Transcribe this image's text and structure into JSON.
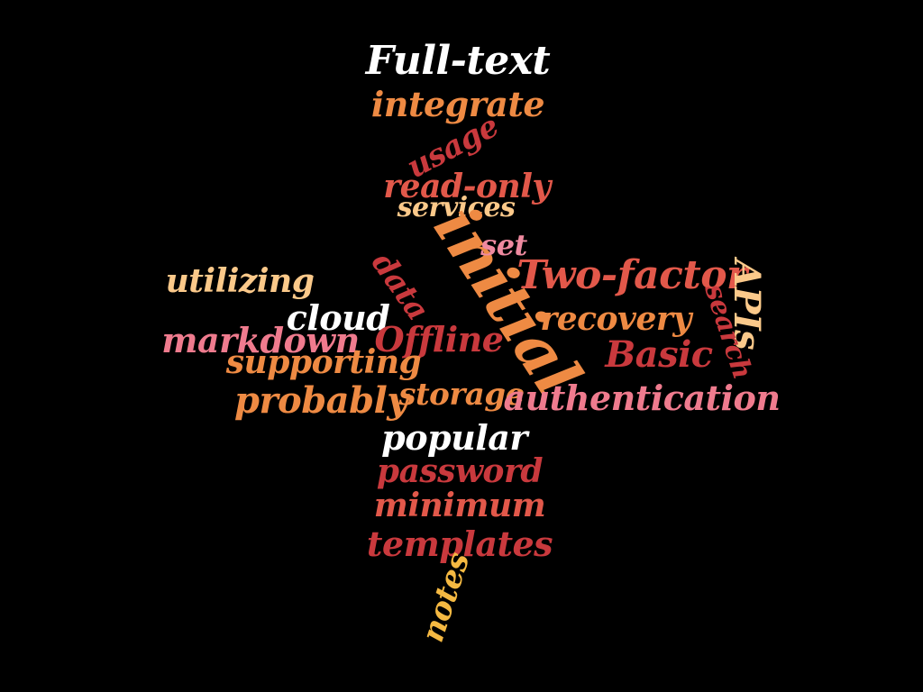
{
  "words": [
    {
      "text": "Full-text",
      "color": "#ffffff"
    },
    {
      "text": "integrate",
      "color": "#ee8a43"
    },
    {
      "text": "usage",
      "color": "#c9393d"
    },
    {
      "text": "read-only",
      "color": "#e2584a"
    },
    {
      "text": "services",
      "color": "#fbc98a"
    },
    {
      "text": "initial",
      "color": "#ee8a43"
    },
    {
      "text": "set",
      "color": "#ef8aa0"
    },
    {
      "text": "utilizing",
      "color": "#fbc98a"
    },
    {
      "text": "data",
      "color": "#c9393d"
    },
    {
      "text": "Two-factor",
      "color": "#e2584a"
    },
    {
      "text": "APIs",
      "color": "#fbc98a"
    },
    {
      "text": "cloud",
      "color": "#ffffff"
    },
    {
      "text": "search",
      "color": "#c9393d"
    },
    {
      "text": "recovery",
      "color": "#ee8a43"
    },
    {
      "text": "markdown",
      "color": "#ef7b8e"
    },
    {
      "text": "Offline",
      "color": "#c9393d"
    },
    {
      "text": "Basic",
      "color": "#c9393d"
    },
    {
      "text": "supporting",
      "color": "#ee8a43"
    },
    {
      "text": "probably",
      "color": "#ee8a43"
    },
    {
      "text": "storage",
      "color": "#ee8a43"
    },
    {
      "text": "authentication",
      "color": "#ef7b8e"
    },
    {
      "text": "popular",
      "color": "#ffffff"
    },
    {
      "text": "password",
      "color": "#c9393d"
    },
    {
      "text": "minimum",
      "color": "#e2584a"
    },
    {
      "text": "templates",
      "color": "#c9393d"
    },
    {
      "text": "notes",
      "color": "#f5b942"
    }
  ]
}
